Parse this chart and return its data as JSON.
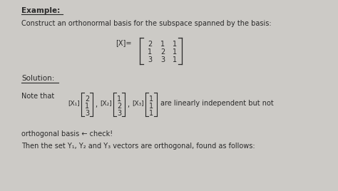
{
  "bg_color": "#cccac6",
  "title": "Example:",
  "line1": "Construct an orthonormal basis for the subspace spanned by the basis:",
  "matrix": [
    [
      2,
      1,
      1
    ],
    [
      1,
      2,
      1
    ],
    [
      3,
      3,
      1
    ]
  ],
  "solution_label": "Solution:",
  "vec1": [
    2,
    1,
    3
  ],
  "vec2": [
    1,
    2,
    3
  ],
  "vec3": [
    1,
    1,
    1
  ],
  "note_end": "are linearly independent but not",
  "line_orth": "orthogonal basis ← check!",
  "line_then": "Then the set Y₁, Y₂ and Y₃ vectors are orthogonal, found as follows:",
  "text_color": "#2a2a2a"
}
